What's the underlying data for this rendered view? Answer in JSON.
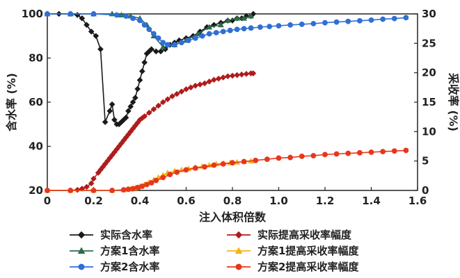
{
  "chart_data": {
    "type": "line",
    "xlabel": "注入体积倍数",
    "ylabel_left": "含水率 (%)",
    "ylabel_right": "采收率 (%)",
    "xlim": [
      0,
      1.6
    ],
    "ylim_left": [
      20,
      100
    ],
    "ylim_right": [
      0,
      30
    ],
    "x_ticks": [
      "0",
      "0.2",
      "0.4",
      "0.6",
      "0.8",
      "1.0",
      "1.2",
      "1.4",
      "1.6"
    ],
    "y_left_ticks": [
      "20",
      "40",
      "60",
      "80",
      "100"
    ],
    "y_right_ticks": [
      "0",
      "5",
      "10",
      "15",
      "20",
      "25",
      "30"
    ],
    "legend_position": "bottom",
    "series": [
      {
        "name": "实际含水率",
        "axis": "left",
        "color": "#1a1a1a",
        "marker": "diamond",
        "x": [
          0,
          0.05,
          0.1,
          0.13,
          0.15,
          0.17,
          0.19,
          0.21,
          0.23,
          0.25,
          0.27,
          0.28,
          0.29,
          0.3,
          0.31,
          0.32,
          0.33,
          0.34,
          0.35,
          0.36,
          0.37,
          0.38,
          0.39,
          0.4,
          0.41,
          0.42,
          0.43,
          0.44,
          0.45,
          0.47,
          0.49,
          0.51,
          0.53,
          0.55,
          0.57,
          0.6,
          0.63,
          0.66,
          0.69,
          0.72,
          0.75,
          0.78,
          0.8,
          0.82,
          0.84,
          0.86,
          0.88,
          0.89
        ],
        "y": [
          100,
          100,
          100,
          99.5,
          98,
          95,
          92,
          90,
          84,
          51,
          56,
          59,
          52,
          50,
          50,
          51,
          52,
          53,
          56,
          58,
          60,
          62,
          66,
          70,
          74,
          78,
          82,
          83,
          84,
          83,
          83,
          84,
          86,
          87,
          88,
          89,
          90,
          92,
          94,
          95,
          96,
          97,
          97,
          98,
          98,
          99,
          99,
          100
        ]
      },
      {
        "name": "方案1含水率",
        "axis": "left",
        "color": "#2e6b4a",
        "marker": "triangle",
        "x": [
          0,
          0.1,
          0.2,
          0.28,
          0.32,
          0.36,
          0.4,
          0.43,
          0.46,
          0.5,
          0.55,
          0.6,
          0.65,
          0.7,
          0.75,
          0.78,
          0.82,
          0.85,
          0.88
        ],
        "y": [
          100,
          100,
          100,
          100,
          99.5,
          99,
          98,
          95,
          90,
          85,
          86,
          88,
          91,
          94,
          95,
          97,
          98,
          98,
          99
        ]
      },
      {
        "name": "方案2含水率",
        "axis": "left",
        "color": "#2f6fd6",
        "marker": "circle",
        "x": [
          0,
          0.1,
          0.2,
          0.3,
          0.34,
          0.37,
          0.4,
          0.42,
          0.44,
          0.46,
          0.48,
          0.5,
          0.52,
          0.55,
          0.58,
          0.61,
          0.64,
          0.67,
          0.7,
          0.73,
          0.76,
          0.79,
          0.82,
          0.85,
          0.88,
          0.92,
          0.96,
          1.0,
          1.05,
          1.1,
          1.15,
          1.2,
          1.25,
          1.3,
          1.35,
          1.4,
          1.45,
          1.5,
          1.55
        ],
        "y": [
          100,
          100,
          100,
          99.5,
          99,
          98,
          97,
          95,
          93,
          91,
          89,
          87,
          86,
          86,
          87,
          88,
          89,
          90,
          91,
          91.5,
          92,
          92.5,
          93,
          93.3,
          93.6,
          94,
          94.3,
          94.6,
          95,
          95.3,
          95.6,
          96,
          96.3,
          96.6,
          96.9,
          97.2,
          97.6,
          97.9,
          98.3
        ]
      },
      {
        "name": "实际提高采收率幅度",
        "axis": "right",
        "color": "#b01c1c",
        "marker": "diamond",
        "x": [
          0,
          0.1,
          0.13,
          0.15,
          0.17,
          0.19,
          0.2,
          0.22,
          0.23,
          0.24,
          0.25,
          0.26,
          0.27,
          0.28,
          0.29,
          0.3,
          0.31,
          0.32,
          0.33,
          0.34,
          0.35,
          0.36,
          0.37,
          0.38,
          0.39,
          0.4,
          0.41,
          0.42,
          0.44,
          0.46,
          0.48,
          0.5,
          0.52,
          0.54,
          0.56,
          0.58,
          0.6,
          0.62,
          0.64,
          0.66,
          0.68,
          0.7,
          0.72,
          0.74,
          0.76,
          0.78,
          0.8,
          0.82,
          0.84,
          0.86,
          0.88,
          0.89
        ],
        "y": [
          0,
          0,
          0.1,
          0.3,
          0.6,
          1.2,
          2,
          3,
          3.5,
          4,
          4.5,
          5,
          5.5,
          6,
          6.5,
          7,
          7.5,
          8,
          8.5,
          9,
          9.5,
          10,
          10.5,
          11,
          11.5,
          12,
          12.3,
          12.6,
          13.2,
          13.8,
          14.4,
          15,
          15.5,
          16,
          16.4,
          16.8,
          17.2,
          17.5,
          17.8,
          18,
          18.2,
          18.5,
          18.8,
          19,
          19.2,
          19.4,
          19.5,
          19.6,
          19.7,
          19.8,
          19.9,
          19.9
        ]
      },
      {
        "name": "方案1提高采收率幅度",
        "axis": "right",
        "color": "#f2b416",
        "marker": "triangle",
        "x": [
          0,
          0.1,
          0.2,
          0.28,
          0.33,
          0.36,
          0.38,
          0.4,
          0.42,
          0.44,
          0.46,
          0.48,
          0.5,
          0.52,
          0.55,
          0.58,
          0.61,
          0.64,
          0.67,
          0.7,
          0.73,
          0.76,
          0.79,
          0.82,
          0.85,
          0.88
        ],
        "y": [
          0,
          0,
          0,
          0,
          0.1,
          0.2,
          0.4,
          0.7,
          1,
          1.4,
          1.8,
          2.2,
          2.6,
          3,
          3.3,
          3.5,
          3.7,
          3.9,
          4.1,
          4.3,
          4.5,
          4.6,
          4.7,
          4.8,
          4.9,
          5
        ]
      },
      {
        "name": "方案2提高采收率幅度",
        "axis": "right",
        "color": "#e8361c",
        "marker": "circle",
        "x": [
          0,
          0.1,
          0.2,
          0.28,
          0.33,
          0.35,
          0.37,
          0.39,
          0.41,
          0.43,
          0.45,
          0.47,
          0.5,
          0.53,
          0.56,
          0.6,
          0.64,
          0.68,
          0.72,
          0.76,
          0.8,
          0.85,
          0.9,
          0.95,
          1.0,
          1.05,
          1.1,
          1.15,
          1.2,
          1.25,
          1.3,
          1.35,
          1.4,
          1.45,
          1.5,
          1.55
        ],
        "y": [
          0,
          0,
          0,
          0,
          0.1,
          0.2,
          0.3,
          0.5,
          0.7,
          1,
          1.3,
          1.7,
          2.2,
          2.7,
          3.1,
          3.5,
          3.8,
          4,
          4.3,
          4.5,
          4.7,
          4.9,
          5.1,
          5.3,
          5.5,
          5.6,
          5.8,
          5.9,
          6.1,
          6.2,
          6.3,
          6.4,
          6.5,
          6.6,
          6.7,
          6.8
        ]
      }
    ]
  }
}
